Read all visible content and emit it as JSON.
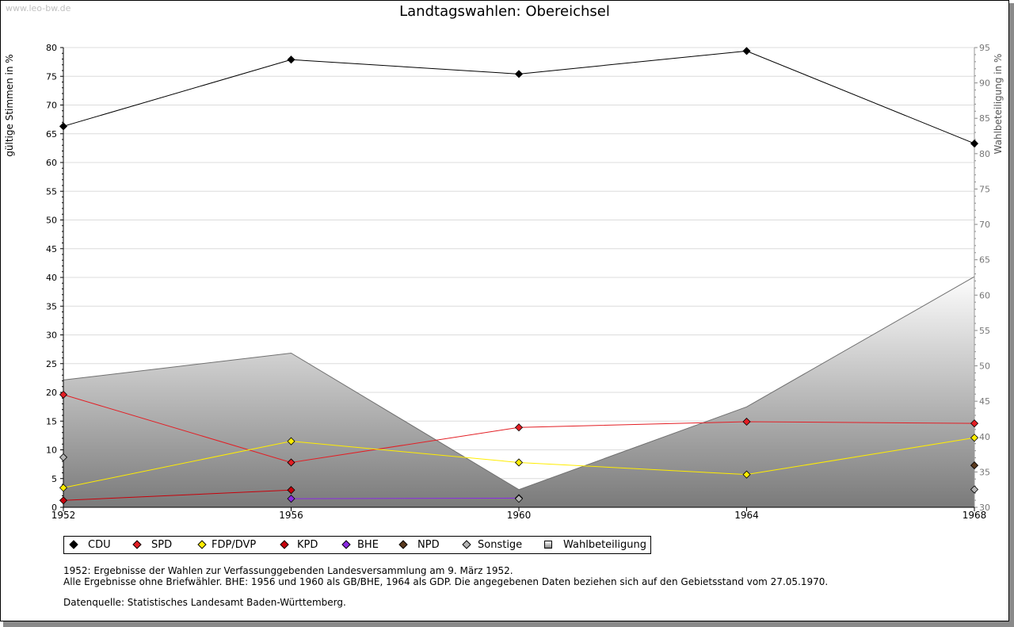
{
  "watermark": "www.leo-bw.de",
  "colors": {
    "CDU": "#000000",
    "SPD": "#e31e24",
    "FDP/DVP": "#ffed00",
    "KPD": "#c8000a",
    "BHE": "#8a2be2",
    "NPD": "#5a3a1e",
    "Sonstige": "#b4b4b4",
    "Wahlbeteiligung": "#808080"
  },
  "legend": [
    "CDU",
    "SPD",
    "FDP/DVP",
    "KPD",
    "BHE",
    "NPD",
    "Sonstige",
    "Wahlbeteiligung"
  ],
  "notes": {
    "line1": "1952: Ergebnisse der Wahlen zur Verfassunggebenden Landesversammlung am 9. März 1952.",
    "line2": "Alle Ergebnisse ohne Briefwähler. BHE: 1956 und 1960 als GB/BHE, 1964 als GDP. Die angegebenen Daten beziehen sich auf den Gebietsstand vom 27.05.1970.",
    "source": "Datenquelle: Statistisches Landesamt Baden-Württemberg."
  },
  "chart_data": {
    "type": "line",
    "title": "Landtagswahlen: Obereichsel",
    "ylabel": "gültige Stimmen in %",
    "y2label": "Wahlbeteiligung in %",
    "categories": [
      "1952",
      "1956",
      "1960",
      "1964",
      "1968"
    ],
    "ylim": [
      0,
      80
    ],
    "y2lim": [
      30,
      95
    ],
    "yticks": [
      "0",
      "5",
      "10",
      "15",
      "20",
      "25",
      "30",
      "35",
      "40",
      "45",
      "50",
      "55",
      "60",
      "65",
      "70",
      "75",
      "80"
    ],
    "y2ticks": [
      "30",
      "35",
      "40",
      "45",
      "50",
      "55",
      "60",
      "65",
      "70",
      "75",
      "80",
      "85",
      "90",
      "95"
    ],
    "grid": true,
    "series": [
      {
        "name": "CDU",
        "values": [
          66.3,
          77.9,
          75.4,
          79.4,
          63.3
        ]
      },
      {
        "name": "SPD",
        "values": [
          19.6,
          7.8,
          13.9,
          14.9,
          14.6
        ]
      },
      {
        "name": "FDP/DVP",
        "values": [
          3.4,
          11.5,
          7.8,
          5.7,
          12.1
        ]
      },
      {
        "name": "KPD",
        "values": [
          1.2,
          3.0,
          null,
          null,
          null
        ]
      },
      {
        "name": "BHE",
        "values": [
          null,
          1.5,
          1.6,
          null,
          null
        ]
      },
      {
        "name": "NPD",
        "values": [
          null,
          null,
          null,
          null,
          7.3
        ]
      },
      {
        "name": "Sonstige",
        "values": [
          8.7,
          null,
          1.5,
          null,
          3.1
        ]
      }
    ],
    "turnout": {
      "name": "Wahlbeteiligung",
      "axis": "right",
      "values": [
        48.0,
        51.8,
        32.5,
        44.2,
        62.6
      ]
    }
  }
}
